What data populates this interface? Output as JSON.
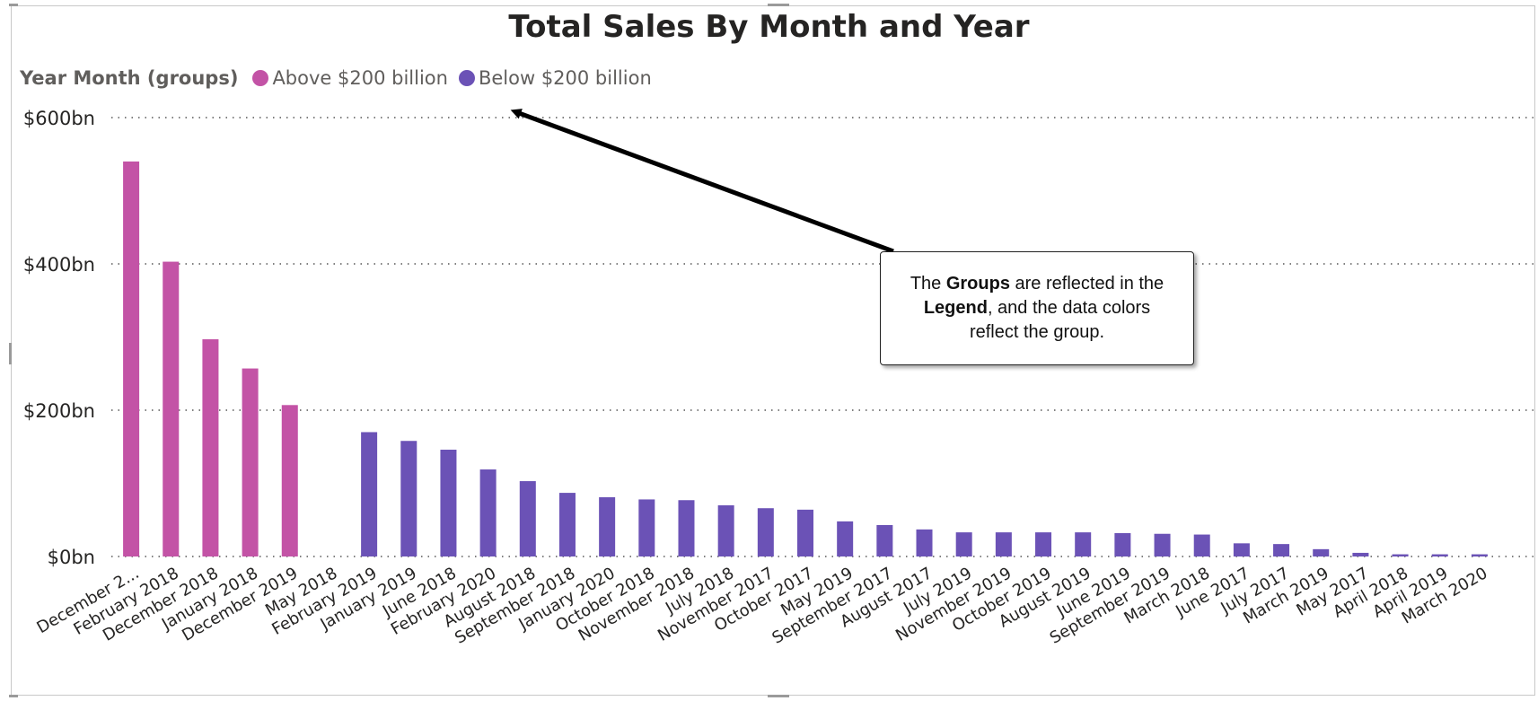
{
  "chart_data": {
    "type": "bar",
    "title": "Total Sales By Month and Year",
    "xlabel": "",
    "ylabel": "",
    "y_unit": "$ billion",
    "ylim": [
      0,
      600
    ],
    "y_ticks": [
      0,
      200,
      400,
      600
    ],
    "y_tick_labels": [
      "$0bn",
      "$200bn",
      "$400bn",
      "$600bn"
    ],
    "grid": true,
    "legend": {
      "position": "top-left",
      "title": "Year Month (groups)",
      "entries": [
        {
          "name": "Above $200 billion",
          "color": "#c353a6"
        },
        {
          "name": "Below $200 billion",
          "color": "#6b52b6"
        }
      ]
    },
    "categories": [
      "December 2...",
      "February 2018",
      "December 2018",
      "January 2018",
      "December 2019",
      "May 2018",
      "February 2019",
      "January 2019",
      "June 2018",
      "February 2020",
      "August 2018",
      "September 2018",
      "January 2020",
      "October 2018",
      "November 2018",
      "July 2018",
      "November 2017",
      "October 2017",
      "May 2019",
      "September 2017",
      "August 2017",
      "July 2019",
      "November 2019",
      "October 2019",
      "August 2019",
      "June 2019",
      "September 2019",
      "March 2018",
      "June 2017",
      "July 2017",
      "March 2019",
      "May 2017",
      "April 2018",
      "April 2019",
      "March 2020"
    ],
    "values": [
      540,
      403,
      297,
      257,
      207,
      0,
      170,
      158,
      146,
      119,
      103,
      87,
      81,
      78,
      77,
      70,
      66,
      64,
      48,
      43,
      37,
      33,
      33,
      33,
      33,
      32,
      31,
      30,
      18,
      17,
      10,
      5,
      3,
      3,
      3
    ],
    "groups": [
      "Above $200 billion",
      "Above $200 billion",
      "Above $200 billion",
      "Above $200 billion",
      "Above $200 billion",
      "Below $200 billion",
      "Below $200 billion",
      "Below $200 billion",
      "Below $200 billion",
      "Below $200 billion",
      "Below $200 billion",
      "Below $200 billion",
      "Below $200 billion",
      "Below $200 billion",
      "Below $200 billion",
      "Below $200 billion",
      "Below $200 billion",
      "Below $200 billion",
      "Below $200 billion",
      "Below $200 billion",
      "Below $200 billion",
      "Below $200 billion",
      "Below $200 billion",
      "Below $200 billion",
      "Below $200 billion",
      "Below $200 billion",
      "Below $200 billion",
      "Below $200 billion",
      "Below $200 billion",
      "Below $200 billion",
      "Below $200 billion",
      "Below $200 billion",
      "Below $200 billion",
      "Below $200 billion",
      "Below $200 billion"
    ],
    "annotation": {
      "parts": [
        {
          "text": "The ",
          "bold": false
        },
        {
          "text": "Groups",
          "bold": true
        },
        {
          "text": " are reflected in the ",
          "bold": false
        },
        {
          "text": "Legend",
          "bold": true
        },
        {
          "text": ", and the data colors reflect the group.",
          "bold": false
        }
      ],
      "points_to": "legend"
    }
  }
}
